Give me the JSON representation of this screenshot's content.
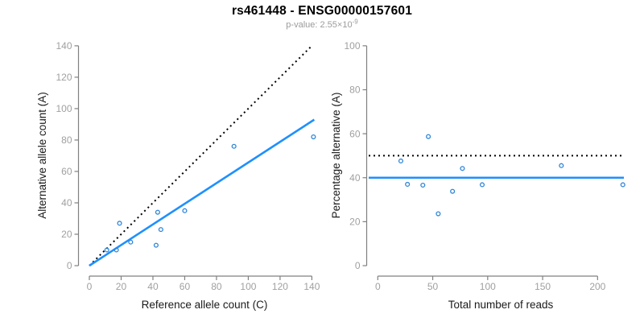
{
  "header": {
    "title": "rs461448 - ENSG00000157601",
    "subtitle_prefix": "p-value: 2.55×10",
    "subtitle_exponent": "-9"
  },
  "colors": {
    "fit_line": "#1e90ff",
    "point_stroke": "#2f86d8",
    "reference_line": "#000000",
    "axis_line": "#808080",
    "tick_label": "#a0a0a0",
    "axis_title": "#1a1a1a",
    "subtitle": "#9b9b9b"
  },
  "chart_data": [
    {
      "type": "scatter",
      "name": "allele-count-plot",
      "xlabel": "Reference allele count (C)",
      "ylabel": "Alternative allele count (A)",
      "xticks": [
        0,
        20,
        40,
        60,
        80,
        100,
        120,
        140
      ],
      "yticks": [
        0,
        20,
        40,
        60,
        80,
        100,
        120,
        140
      ],
      "xlim": [
        0,
        141.5
      ],
      "ylim": [
        0,
        140
      ],
      "grid": false,
      "legend": "none",
      "points": [
        [
          11,
          10
        ],
        [
          17,
          10
        ],
        [
          19,
          27
        ],
        [
          26,
          15
        ],
        [
          42,
          13
        ],
        [
          43,
          34
        ],
        [
          45,
          23
        ],
        [
          60,
          35
        ],
        [
          91,
          76
        ],
        [
          141,
          82
        ]
      ],
      "fit_line": {
        "slope": 0.657,
        "intercept": 0,
        "x_range": [
          0,
          141.5
        ],
        "style": "solid"
      },
      "reference_line": {
        "slope": 1,
        "intercept": 0,
        "x_range": [
          0,
          140
        ],
        "style": "dotted"
      }
    },
    {
      "type": "scatter",
      "name": "percentage-alternative-plot",
      "xlabel": "Total number of reads",
      "ylabel": "Percentage alternative (A)",
      "xticks": [
        0,
        50,
        100,
        150,
        200
      ],
      "yticks": [
        0,
        20,
        40,
        60,
        80,
        100
      ],
      "xlim": [
        -8,
        224
      ],
      "ylim": [
        0,
        100
      ],
      "grid": false,
      "legend": "none",
      "points": [
        [
          21,
          47.6
        ],
        [
          27,
          37.0
        ],
        [
          41,
          36.6
        ],
        [
          46,
          58.7
        ],
        [
          55,
          23.6
        ],
        [
          68,
          33.8
        ],
        [
          77,
          44.2
        ],
        [
          95,
          36.8
        ],
        [
          167,
          45.5
        ],
        [
          223,
          36.8
        ]
      ],
      "fit_line": {
        "y": 40,
        "style": "solid"
      },
      "reference_line": {
        "y": 50,
        "style": "dotted"
      }
    }
  ]
}
